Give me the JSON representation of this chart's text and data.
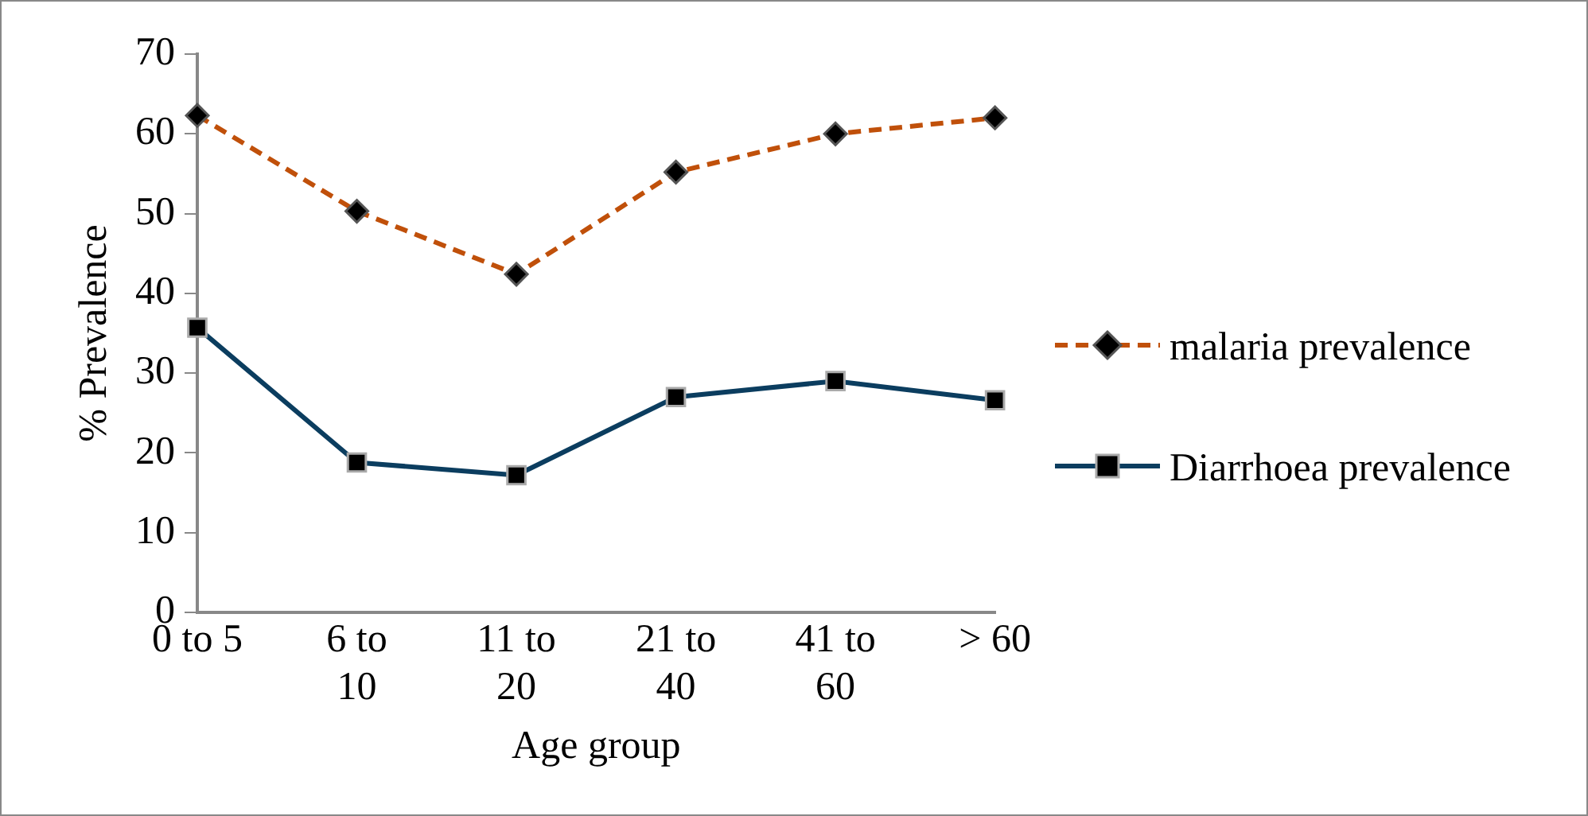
{
  "chart_data": {
    "type": "line",
    "xlabel": "Age group",
    "ylabel": "% Prevalence",
    "categories": [
      "0 to 5",
      "6 to 10",
      "11 to 20",
      "21 to 40",
      "41 to 60",
      "> 60"
    ],
    "series": [
      {
        "name": "malaria prevalence",
        "color": "#c0500a",
        "line_style": "dashed",
        "marker": "diamond",
        "values": [
          62.3,
          50.3,
          42.4,
          55.2,
          60.0,
          62.0
        ]
      },
      {
        "name": "Diarrhoea prevalence",
        "color": "#0b3d5f",
        "line_style": "solid",
        "marker": "square",
        "values": [
          35.7,
          18.8,
          17.2,
          27.0,
          29.0,
          26.6
        ]
      }
    ],
    "ylim": [
      0,
      70
    ],
    "yticks": [
      0,
      10,
      20,
      30,
      40,
      50,
      60,
      70
    ],
    "grid": false,
    "legend": "right"
  }
}
